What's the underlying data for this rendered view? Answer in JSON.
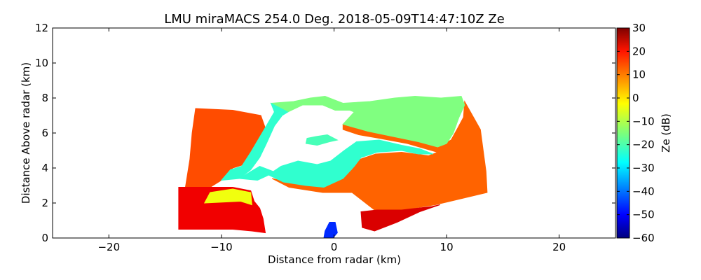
{
  "chart_data": {
    "type": "heatmap",
    "title": "LMU miraMACS 254.0 Deg. 2018-05-09T14:47:10Z  Ze",
    "xlabel": "Distance from radar (km)",
    "ylabel": "Distance Above radar  (km)",
    "xlim": [
      -25,
      25
    ],
    "ylim": [
      0,
      12
    ],
    "xticks": [
      -20,
      -10,
      0,
      10,
      20
    ],
    "xtick_labels": [
      "−20",
      "−10",
      "0",
      "10",
      "20"
    ],
    "yticks": [
      0,
      2,
      4,
      6,
      8,
      10,
      12
    ],
    "ytick_labels": [
      "0",
      "2",
      "4",
      "6",
      "8",
      "10",
      "12"
    ],
    "colorbar": {
      "label": "Ze (dB)",
      "range": [
        -60,
        30
      ],
      "ticks": [
        30,
        20,
        10,
        0,
        -10,
        -20,
        -30,
        -40,
        -50,
        -60
      ],
      "tick_labels": [
        "30",
        "20",
        "10",
        "0",
        "−10",
        "−20",
        "−30",
        "−40",
        "−50",
        "−60"
      ],
      "colormap": "jet"
    },
    "grid": false,
    "regions": [
      {
        "name": "left-echo-upper",
        "polygon": [
          [
            -12.3,
            7.4
          ],
          [
            -9,
            7.3
          ],
          [
            -6.5,
            7.0
          ],
          [
            -6,
            6.1
          ],
          [
            -7.3,
            5.0
          ],
          [
            -8,
            4.2
          ],
          [
            -9,
            4.0
          ],
          [
            -10,
            3.3
          ],
          [
            -11,
            2.9
          ],
          [
            -13.2,
            2.9
          ],
          [
            -12.8,
            4.5
          ],
          [
            -12.6,
            6.0
          ]
        ],
        "ze": 12
      },
      {
        "name": "left-echo-lower",
        "polygon": [
          [
            -13.8,
            2.9
          ],
          [
            -9,
            2.9
          ],
          [
            -7.4,
            2.7
          ],
          [
            -7.1,
            2.1
          ],
          [
            -6.6,
            1.7
          ],
          [
            -6.3,
            1.1
          ],
          [
            -6.1,
            0.3
          ],
          [
            -7.3,
            0.4
          ],
          [
            -9,
            0.5
          ],
          [
            -11,
            0.5
          ],
          [
            -13.8,
            0.5
          ],
          [
            -13.8,
            1.6
          ]
        ],
        "ze": 20
      },
      {
        "name": "right-echo",
        "polygon": [
          [
            0.8,
            6.5
          ],
          [
            3,
            6.1
          ],
          [
            6,
            5.7
          ],
          [
            7.5,
            5.5
          ],
          [
            9.5,
            5.3
          ],
          [
            10.4,
            5.6
          ],
          [
            11,
            6.3
          ],
          [
            11.5,
            6.9
          ],
          [
            11.6,
            7.8
          ],
          [
            13,
            6.2
          ],
          [
            13.5,
            3.8
          ],
          [
            13.6,
            2.6
          ],
          [
            9,
            1.9
          ],
          [
            6,
            1.6
          ],
          [
            3.8,
            1.5
          ],
          [
            2.6,
            2.1
          ],
          [
            1.6,
            2.6
          ],
          [
            -1,
            2.6
          ],
          [
            -4,
            2.9
          ],
          [
            -5.5,
            3.4
          ],
          [
            -4.2,
            3.2
          ],
          [
            -1,
            2.9
          ],
          [
            0.5,
            3.3
          ],
          [
            1.6,
            3.9
          ],
          [
            2.3,
            4.5
          ],
          [
            3.7,
            4.8
          ],
          [
            6,
            4.9
          ],
          [
            8.4,
            4.7
          ],
          [
            9.2,
            4.9
          ],
          [
            6.5,
            5.4
          ],
          [
            4,
            5.7
          ],
          [
            2.2,
            5.9
          ],
          [
            0.8,
            6.2
          ]
        ],
        "ze": 10
      },
      {
        "name": "right-echo-lower",
        "polygon": [
          [
            2.4,
            1.5
          ],
          [
            3.8,
            1.6
          ],
          [
            6,
            1.6
          ],
          [
            8.7,
            1.8
          ],
          [
            9.4,
            1.9
          ],
          [
            7.6,
            1.5
          ],
          [
            5.6,
            0.9
          ],
          [
            3.6,
            0.4
          ],
          [
            2.5,
            0.6
          ]
        ],
        "ze": 22
      },
      {
        "name": "upper-thin-cloud",
        "polygon": [
          [
            -5.6,
            7.7
          ],
          [
            -3.6,
            7.8
          ],
          [
            -2.1,
            8.0
          ],
          [
            -0.8,
            8.1
          ],
          [
            0.8,
            7.7
          ],
          [
            3.2,
            7.8
          ],
          [
            5.4,
            8.0
          ],
          [
            7.2,
            8.1
          ],
          [
            9.5,
            8.0
          ],
          [
            11.3,
            8.1
          ],
          [
            11.6,
            7.6
          ],
          [
            11.1,
            6.9
          ],
          [
            10.6,
            6.0
          ],
          [
            10,
            5.4
          ],
          [
            9.2,
            5.2
          ],
          [
            7.5,
            5.5
          ],
          [
            6,
            5.7
          ],
          [
            3,
            6.1
          ],
          [
            0.8,
            6.5
          ],
          [
            1.8,
            7.2
          ],
          [
            1.4,
            7.3
          ],
          [
            0.1,
            7.3
          ],
          [
            -1,
            7.6
          ],
          [
            -2.8,
            7.6
          ],
          [
            -4.1,
            7.2
          ],
          [
            -5.3,
            7.5
          ]
        ],
        "ze": -15
      },
      {
        "name": "upper-band-edge",
        "polygon": [
          [
            -5.6,
            7.7
          ],
          [
            -5.3,
            7.2
          ],
          [
            -6.2,
            6.2
          ],
          [
            -7.4,
            4.9
          ],
          [
            -8.2,
            4.1
          ],
          [
            -9.2,
            3.9
          ],
          [
            -10,
            3.3
          ],
          [
            -8.4,
            3.4
          ],
          [
            -7.4,
            3.9
          ],
          [
            -6.6,
            4.6
          ],
          [
            -6,
            5.4
          ],
          [
            -5.3,
            6.4
          ],
          [
            -4.6,
            7.0
          ],
          [
            -4.1,
            7.2
          ]
        ],
        "ze": -22
      },
      {
        "name": "mid-band",
        "polygon": [
          [
            -8.4,
            3.4
          ],
          [
            -6.8,
            3.3
          ],
          [
            -5.8,
            3.6
          ],
          [
            -4.5,
            3.2
          ],
          [
            -2.5,
            3.0
          ],
          [
            -0.9,
            2.9
          ],
          [
            0.8,
            3.4
          ],
          [
            1.8,
            4.1
          ],
          [
            2.4,
            4.6
          ],
          [
            3.8,
            4.9
          ],
          [
            6,
            5.0
          ],
          [
            7.5,
            4.8
          ],
          [
            8.8,
            4.8
          ],
          [
            7.6,
            5.1
          ],
          [
            6,
            5.3
          ],
          [
            4,
            5.6
          ],
          [
            2,
            5.5
          ],
          [
            0.9,
            5.0
          ],
          [
            -0.3,
            4.4
          ],
          [
            -1.5,
            4.2
          ],
          [
            -3.2,
            4.4
          ],
          [
            -4.7,
            4.1
          ],
          [
            -5.4,
            3.8
          ],
          [
            -6.6,
            4.1
          ],
          [
            -7.4,
            3.8
          ]
        ],
        "ze": -22
      },
      {
        "name": "small-fragment",
        "polygon": [
          [
            -2.5,
            5.4
          ],
          [
            -1.5,
            5.3
          ],
          [
            -0.4,
            5.5
          ],
          [
            0.3,
            5.6
          ],
          [
            -0.6,
            5.9
          ],
          [
            -1.6,
            5.8
          ],
          [
            -2.4,
            5.7
          ]
        ],
        "ze": -20
      },
      {
        "name": "low-band",
        "polygon": [
          [
            -11.5,
            2.0
          ],
          [
            -8.3,
            2.1
          ],
          [
            -7.3,
            1.9
          ],
          [
            -7.4,
            2.6
          ],
          [
            -9,
            2.8
          ],
          [
            -11,
            2.6
          ]
        ],
        "ze": -5
      },
      {
        "name": "near-radar-specks",
        "polygon": [
          [
            -0.9,
            0.0
          ],
          [
            -0.1,
            0.0
          ],
          [
            0.3,
            0.3
          ],
          [
            0.1,
            0.9
          ],
          [
            -0.4,
            0.9
          ],
          [
            -0.8,
            0.4
          ]
        ],
        "ze": -45
      }
    ]
  }
}
